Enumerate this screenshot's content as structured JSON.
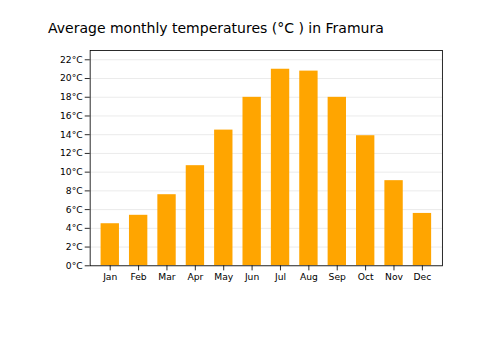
{
  "chart_data": {
    "type": "bar",
    "title": "Average monthly temperatures (°C ) in Framura",
    "categories": [
      "Jan",
      "Feb",
      "Mar",
      "Apr",
      "May",
      "Jun",
      "Jul",
      "Aug",
      "Sep",
      "Oct",
      "Nov",
      "Dec"
    ],
    "values": [
      4.5,
      5.4,
      7.6,
      10.7,
      14.5,
      18.0,
      21.0,
      20.8,
      18.0,
      13.9,
      9.1,
      5.6
    ],
    "color": "#FFA500",
    "ylim": [
      0,
      23
    ],
    "yticks": [
      {
        "value": 0,
        "label": "0°C"
      },
      {
        "value": 2,
        "label": "2°C"
      },
      {
        "value": 4,
        "label": "4°C"
      },
      {
        "value": 6,
        "label": "6°C"
      },
      {
        "value": 8,
        "label": "8°C"
      },
      {
        "value": 10,
        "label": "10°C"
      },
      {
        "value": 12,
        "label": "12°C"
      },
      {
        "value": 14,
        "label": "14°C"
      },
      {
        "value": 16,
        "label": "16°C"
      },
      {
        "value": 18,
        "label": "18°C"
      },
      {
        "value": 20,
        "label": "20°C"
      },
      {
        "value": 22,
        "label": "22°C"
      }
    ],
    "grid": true
  }
}
